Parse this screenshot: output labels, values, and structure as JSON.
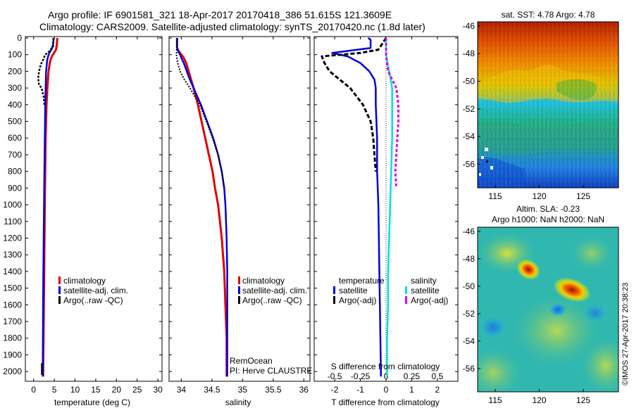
{
  "header": {
    "line1": "Argo profile: IF 6901581_321 18-Apr-2017 20170418_386 51.615S 121.3609E",
    "line2": "Climatology: CARS2009. Satellite-adjusted climatology: synTS_20170420.nc (1.8d later)"
  },
  "colors": {
    "climatology": "#e00000",
    "satellite": "#0000e0",
    "argo": "#000000",
    "satellite_salinity": "#00e0e0",
    "argo_salinity": "#e000e0"
  },
  "chart_data": [
    {
      "type": "line",
      "xlabel": "temperature (deg C)",
      "ylabel": "",
      "xlim": [
        -2,
        31
      ],
      "ylim": [
        0,
        2050
      ],
      "y_reversed": true,
      "xticks": [
        "0",
        "5",
        "10",
        "15",
        "20",
        "25",
        "30"
      ],
      "yticks": [
        "0",
        "100",
        "200",
        "300",
        "400",
        "500",
        "600",
        "700",
        "800",
        "900",
        "1000",
        "1100",
        "1200",
        "1300",
        "1400",
        "1500",
        "1600",
        "1700",
        "1800",
        "1900",
        "2000"
      ],
      "legend": [
        "climatology",
        "satellite-adj. clim.",
        "Argo(..raw -QC)"
      ],
      "series": [
        {
          "name": "climatology",
          "depth": [
            0,
            40,
            70,
            90,
            110,
            130,
            150,
            200,
            300,
            400,
            600,
            800,
            1000,
            1500,
            2000,
            2030
          ],
          "values": [
            5.7,
            5.6,
            5.4,
            4.9,
            4.4,
            4.1,
            3.9,
            3.6,
            3.3,
            3.1,
            2.9,
            2.8,
            2.7,
            2.5,
            2.3,
            2.3
          ]
        },
        {
          "name": "satellite-adj. clim.",
          "depth": [
            0,
            40,
            70,
            90,
            110,
            130,
            150,
            200,
            300,
            400,
            600,
            800,
            1000,
            1500,
            2000,
            2030
          ],
          "values": [
            4.8,
            4.7,
            4.3,
            3.8,
            3.5,
            3.3,
            3.2,
            3.0,
            2.9,
            2.8,
            2.7,
            2.6,
            2.5,
            2.3,
            2.2,
            2.2
          ]
        },
        {
          "name": "Argo(..raw -QC)",
          "depth": [
            0,
            50,
            80,
            100,
            130,
            160,
            200,
            240,
            280,
            300,
            350,
            400
          ],
          "values": [
            4.8,
            4.7,
            3.8,
            2.8,
            2.3,
            1.7,
            1.3,
            1.1,
            1.3,
            1.9,
            2.4,
            2.6
          ]
        },
        {
          "name": "Argo deep",
          "depth": [
            1950,
            1980,
            2000,
            2020
          ],
          "values": [
            2.0,
            2.0,
            2.0,
            2.0
          ]
        }
      ]
    },
    {
      "type": "line",
      "xlabel": "salinity",
      "xlim": [
        33.8,
        36.1
      ],
      "ylim": [
        0,
        2050
      ],
      "y_reversed": true,
      "xticks": [
        "34",
        "34.5",
        "35",
        "35.5",
        "36"
      ],
      "legend": [
        "climatology",
        "satellite-adj. clim.",
        "Argo(..raw -QC)"
      ],
      "annotation": [
        "RemOcean",
        "PI: Herve CLAUSTRE"
      ],
      "series": [
        {
          "name": "climatology",
          "depth": [
            0,
            60,
            80,
            100,
            120,
            150,
            200,
            250,
            300,
            400,
            500,
            600,
            700,
            800,
            900,
            1000,
            1200,
            1400,
            1600,
            1800,
            2000,
            2030
          ],
          "values": [
            33.93,
            33.93,
            33.96,
            34.0,
            34.04,
            34.08,
            34.12,
            34.16,
            34.2,
            34.27,
            34.33,
            34.39,
            34.45,
            34.51,
            34.55,
            34.6,
            34.66,
            34.7,
            34.72,
            34.74,
            34.74,
            34.74
          ]
        },
        {
          "name": "satellite-adj. clim.",
          "depth": [
            0,
            60,
            80,
            100,
            120,
            150,
            200,
            250,
            300,
            400,
            500,
            600,
            700,
            800,
            900,
            1000,
            1200,
            1400,
            1600,
            1800,
            2000,
            2030
          ],
          "values": [
            33.93,
            33.93,
            33.95,
            33.98,
            34.0,
            34.04,
            34.09,
            34.14,
            34.2,
            34.32,
            34.42,
            34.52,
            34.6,
            34.66,
            34.7,
            34.72,
            34.74,
            34.75,
            34.75,
            34.75,
            34.75,
            34.75
          ]
        },
        {
          "name": "Argo(..raw -QC)",
          "depth": [
            0,
            50,
            100,
            150,
            200,
            250,
            300,
            400,
            500,
            600,
            700,
            800,
            900
          ],
          "values": [
            33.93,
            33.93,
            33.92,
            33.94,
            33.98,
            34.05,
            34.14,
            34.3,
            34.41,
            34.51,
            34.6,
            34.66,
            34.7
          ]
        }
      ]
    },
    {
      "type": "line",
      "xlabel": "T difference from climatology",
      "xlabel_secondary": "S difference from climatology",
      "xlim": [
        -2.8,
        2.8
      ],
      "xlim_secondary": [
        -0.7,
        0.7
      ],
      "ylim": [
        0,
        2050
      ],
      "y_reversed": true,
      "xticks": [
        "-2",
        "-1",
        "0",
        "1",
        "2"
      ],
      "xticks_secondary": [
        "-0.5",
        "-0.25",
        "0",
        "0.25",
        "0.5"
      ],
      "legend_titles": [
        "temperature",
        "salinity"
      ],
      "legend": [
        "satellite",
        "Argo(-adj)",
        "satellite",
        "Argo(-adj)"
      ],
      "series": [
        {
          "name": "temperature satellite",
          "depth": [
            0,
            10,
            60,
            90,
            110,
            150,
            200,
            250,
            300,
            400,
            600,
            800,
            1000,
            1500,
            2000,
            2030
          ],
          "values": [
            -0.7,
            -0.6,
            -0.6,
            -2.1,
            -1.5,
            -1.0,
            -0.65,
            -0.45,
            -0.4,
            -0.4,
            -0.35,
            -0.35,
            -0.3,
            -0.25,
            -0.2,
            -0.2
          ]
        },
        {
          "name": "temperature Argo(-adj)",
          "depth": [
            0,
            70,
            90,
            110,
            150,
            200,
            300,
            400,
            500,
            600,
            800
          ],
          "values": [
            0,
            -0.3,
            -1.0,
            -2.5,
            -2.4,
            -2.2,
            -1.4,
            -0.9,
            -0.6,
            -0.5,
            -0.4
          ]
        },
        {
          "name": "salinity satellite",
          "depth": [
            0,
            100,
            200,
            300,
            400,
            600,
            800,
            1000,
            1200,
            1400,
            1600,
            1800,
            2000,
            2030
          ],
          "values": [
            0,
            0,
            0.03,
            0.06,
            0.06,
            0.06,
            0.05,
            0.04,
            0.03,
            0.02,
            0.02,
            0.01,
            0.01,
            0.01
          ]
        },
        {
          "name": "salinity Argo(-adj)",
          "depth": [
            0,
            100,
            200,
            300,
            400,
            500,
            600,
            700,
            800,
            900
          ],
          "values": [
            0,
            0,
            0.02,
            0.1,
            0.12,
            0.12,
            0.11,
            0.1,
            0.09,
            0.1
          ]
        }
      ]
    }
  ],
  "maps": [
    {
      "title": "sat. SST: 4.78  Argo: 4.78",
      "xticks": [
        "115",
        "120",
        "125"
      ],
      "yticks": [
        "-46",
        "-48",
        "-50",
        "-52",
        "-54",
        "-56"
      ],
      "xlim": [
        113,
        129
      ],
      "ylim": [
        -57.7,
        -45.7
      ]
    },
    {
      "title_line1": "Altim. SLA: -0.23",
      "title_line2": "Argo h1000: NaN h2000: NaN",
      "xticks": [
        "115",
        "120",
        "125"
      ],
      "yticks": [
        "-46",
        "-48",
        "-50",
        "-52",
        "-54",
        "-56"
      ],
      "xlim": [
        113,
        129
      ],
      "ylim": [
        -57.7,
        -45.7
      ]
    }
  ],
  "watermark": "©IMOS 27-Apr-2017 20:38:23"
}
